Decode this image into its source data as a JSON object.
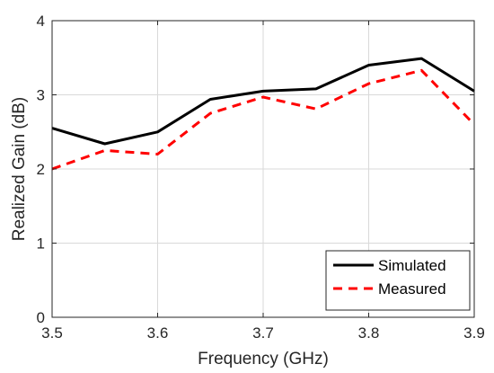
{
  "chart_data": {
    "type": "line",
    "title": "",
    "xlabel": "Frequency (GHz)",
    "ylabel": "Realized Gain (dB)",
    "xlim": [
      3.5,
      3.9
    ],
    "ylim": [
      0,
      4
    ],
    "x_ticks": [
      "3.5",
      "3.6",
      "3.7",
      "3.8",
      "3.9"
    ],
    "y_ticks": [
      "0",
      "1",
      "2",
      "3",
      "4"
    ],
    "grid": true,
    "legend_position": "bottom-right",
    "x": [
      3.5,
      3.55,
      3.6,
      3.65,
      3.7,
      3.75,
      3.8,
      3.85,
      3.9
    ],
    "series": [
      {
        "name": "Simulated",
        "color": "#000000",
        "style": "solid",
        "values": [
          2.55,
          2.34,
          2.5,
          2.94,
          3.05,
          3.08,
          3.4,
          3.49,
          3.05
        ]
      },
      {
        "name": "Measured",
        "color": "#ff0000",
        "style": "dashed",
        "values": [
          2.0,
          2.25,
          2.2,
          2.75,
          2.97,
          2.81,
          3.15,
          3.33,
          2.6
        ]
      }
    ]
  }
}
